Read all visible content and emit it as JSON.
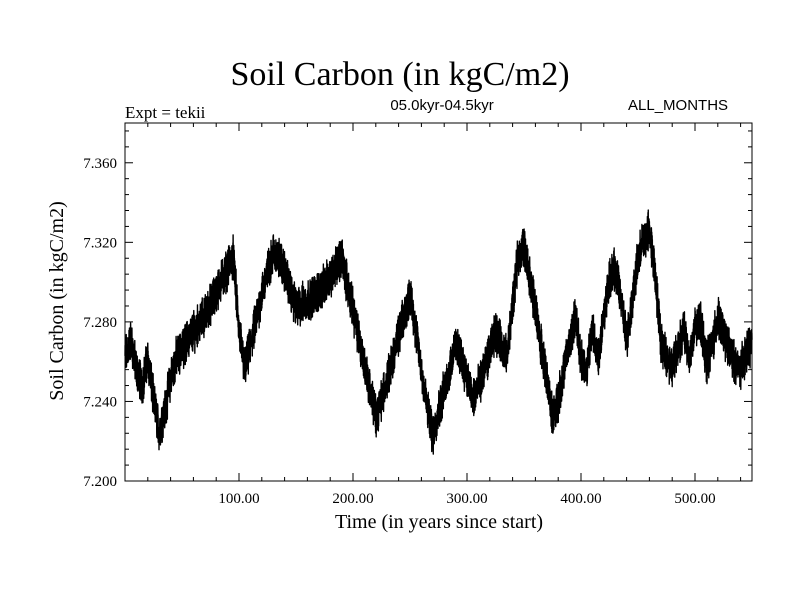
{
  "header": {
    "title": "Soil Carbon (in kgC/m2)",
    "experiment": "Expt = tekii",
    "period": "05.0kyr-04.5kyr",
    "months": "ALL_MONTHS"
  },
  "chart_data": {
    "type": "line",
    "title": "Soil Carbon (in kgC/m2)",
    "xlabel": "Time (in years since start)",
    "ylabel": "Soil Carbon (in kgC/m2)",
    "xlim": [
      0,
      550
    ],
    "ylim": [
      7.2,
      7.38
    ],
    "xticks": [
      100,
      200,
      300,
      400,
      500
    ],
    "xtick_labels": [
      "100.00",
      "200.00",
      "300.00",
      "400.00",
      "500.00"
    ],
    "yticks": [
      7.2,
      7.24,
      7.28,
      7.32,
      7.36
    ],
    "ytick_labels": [
      "7.200",
      "7.240",
      "7.280",
      "7.320",
      "7.360"
    ],
    "color": "#000000",
    "series": [
      {
        "name": "Soil Carbon",
        "resolution": "monthly (annual-mean control points listed below)",
        "x": [
          0,
          5,
          10,
          15,
          20,
          25,
          30,
          35,
          40,
          45,
          50,
          55,
          60,
          65,
          70,
          75,
          80,
          85,
          90,
          95,
          100,
          105,
          110,
          115,
          120,
          125,
          130,
          135,
          140,
          145,
          150,
          155,
          160,
          165,
          170,
          175,
          180,
          185,
          190,
          195,
          200,
          205,
          210,
          215,
          220,
          225,
          230,
          235,
          240,
          245,
          250,
          255,
          260,
          265,
          270,
          275,
          280,
          285,
          290,
          295,
          300,
          305,
          310,
          315,
          320,
          325,
          330,
          335,
          340,
          345,
          350,
          355,
          360,
          365,
          370,
          375,
          380,
          385,
          390,
          395,
          400,
          405,
          410,
          415,
          420,
          425,
          430,
          435,
          440,
          445,
          450,
          455,
          460,
          465,
          470,
          475,
          480,
          485,
          490,
          495,
          500,
          505,
          510,
          515,
          520,
          525,
          530,
          535,
          540,
          545,
          550
        ],
        "values": [
          7.262,
          7.271,
          7.256,
          7.248,
          7.262,
          7.241,
          7.225,
          7.236,
          7.251,
          7.262,
          7.266,
          7.271,
          7.275,
          7.279,
          7.283,
          7.289,
          7.295,
          7.301,
          7.307,
          7.313,
          7.276,
          7.256,
          7.268,
          7.281,
          7.294,
          7.305,
          7.315,
          7.312,
          7.305,
          7.296,
          7.287,
          7.289,
          7.291,
          7.293,
          7.296,
          7.298,
          7.303,
          7.308,
          7.313,
          7.299,
          7.286,
          7.272,
          7.259,
          7.246,
          7.233,
          7.241,
          7.252,
          7.262,
          7.273,
          7.283,
          7.294,
          7.276,
          7.256,
          7.237,
          7.223,
          7.235,
          7.246,
          7.257,
          7.268,
          7.262,
          7.252,
          7.241,
          7.247,
          7.256,
          7.265,
          7.275,
          7.269,
          7.262,
          7.289,
          7.313,
          7.318,
          7.303,
          7.286,
          7.268,
          7.251,
          7.232,
          7.241,
          7.256,
          7.269,
          7.282,
          7.262,
          7.255,
          7.276,
          7.262,
          7.283,
          7.303,
          7.307,
          7.291,
          7.271,
          7.291,
          7.311,
          7.322,
          7.326,
          7.304,
          7.271,
          7.262,
          7.258,
          7.267,
          7.276,
          7.262,
          7.276,
          7.281,
          7.259,
          7.268,
          7.282,
          7.274,
          7.266,
          7.259,
          7.257,
          7.264,
          7.271
        ]
      }
    ]
  }
}
